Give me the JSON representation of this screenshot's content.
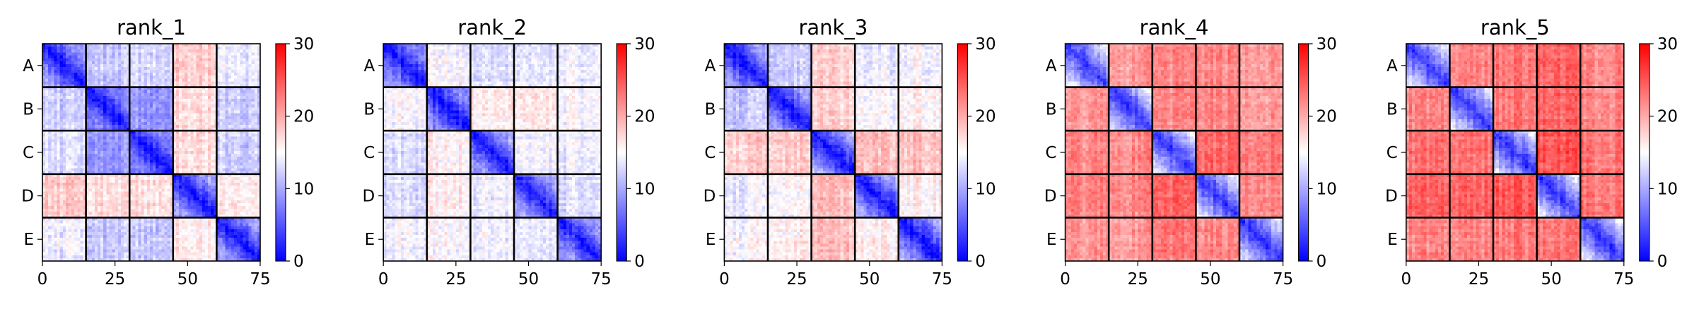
{
  "chart_data": [
    {
      "type": "heatmap",
      "title": "rank_1",
      "row_labels": [
        "A",
        "B",
        "C",
        "D",
        "E"
      ],
      "x_ticks": [
        0,
        25,
        50,
        75
      ],
      "xlim": [
        0,
        75
      ],
      "colorbar_ticks": [
        0,
        10,
        20,
        30
      ],
      "colorbar_range": [
        0,
        30
      ],
      "colormap": "bwr",
      "block_levels": [
        [
          8,
          12,
          13,
          18,
          14
        ],
        [
          12,
          6,
          9,
          17,
          12
        ],
        [
          13,
          9,
          6,
          17,
          12
        ],
        [
          18,
          17,
          17,
          8,
          16
        ],
        [
          14,
          12,
          12,
          16,
          8
        ]
      ]
    },
    {
      "type": "heatmap",
      "title": "rank_2",
      "row_labels": [
        "A",
        "B",
        "C",
        "D",
        "E"
      ],
      "x_ticks": [
        0,
        25,
        50,
        75
      ],
      "xlim": [
        0,
        75
      ],
      "colorbar_ticks": [
        0,
        10,
        20,
        30
      ],
      "colorbar_range": [
        0,
        30
      ],
      "colormap": "bwr",
      "block_levels": [
        [
          7,
          15,
          13,
          13,
          14
        ],
        [
          15,
          7,
          16,
          16,
          15
        ],
        [
          13,
          16,
          8,
          14,
          14
        ],
        [
          13,
          16,
          14,
          8,
          13
        ],
        [
          14,
          15,
          14,
          13,
          7
        ]
      ]
    },
    {
      "type": "heatmap",
      "title": "rank_3",
      "row_labels": [
        "A",
        "B",
        "C",
        "D",
        "E"
      ],
      "x_ticks": [
        0,
        25,
        50,
        75
      ],
      "xlim": [
        0,
        75
      ],
      "colorbar_ticks": [
        0,
        10,
        20,
        30
      ],
      "colorbar_range": [
        0,
        30
      ],
      "colormap": "bwr",
      "block_levels": [
        [
          8,
          12,
          18,
          14,
          15
        ],
        [
          12,
          8,
          18,
          15,
          16
        ],
        [
          18,
          18,
          11,
          19,
          19
        ],
        [
          14,
          15,
          19,
          9,
          16
        ],
        [
          15,
          16,
          19,
          16,
          9
        ]
      ]
    },
    {
      "type": "heatmap",
      "title": "rank_4",
      "row_labels": [
        "A",
        "B",
        "C",
        "D",
        "E"
      ],
      "x_ticks": [
        0,
        25,
        50,
        75
      ],
      "xlim": [
        0,
        75
      ],
      "colorbar_ticks": [
        0,
        10,
        20,
        30
      ],
      "colorbar_range": [
        0,
        30
      ],
      "colormap": "bwr",
      "block_levels": [
        [
          17,
          21,
          22,
          22,
          21
        ],
        [
          21,
          17,
          22,
          22,
          21
        ],
        [
          22,
          22,
          19,
          24,
          23
        ],
        [
          22,
          22,
          24,
          18,
          22
        ],
        [
          21,
          21,
          23,
          22,
          17
        ]
      ]
    },
    {
      "type": "heatmap",
      "title": "rank_5",
      "row_labels": [
        "A",
        "B",
        "C",
        "D",
        "E"
      ],
      "x_ticks": [
        0,
        25,
        50,
        75
      ],
      "xlim": [
        0,
        75
      ],
      "colorbar_ticks": [
        0,
        10,
        20,
        30
      ],
      "colorbar_range": [
        0,
        30
      ],
      "colormap": "bwr",
      "block_levels": [
        [
          17,
          22,
          23,
          24,
          22
        ],
        [
          22,
          18,
          23,
          24,
          22
        ],
        [
          23,
          23,
          19,
          25,
          23
        ],
        [
          24,
          24,
          25,
          18,
          23
        ],
        [
          22,
          22,
          23,
          23,
          17
        ]
      ]
    }
  ]
}
